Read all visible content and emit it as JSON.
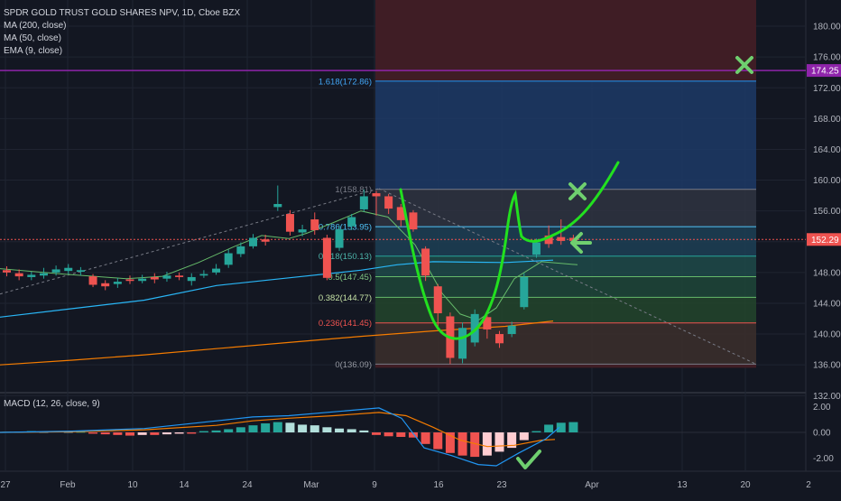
{
  "header": {
    "symbol_line": "SPDR GOLD TRUST GOLD SHARES NPV, 1D, Cboe BZX",
    "indicators": [
      "MA (200, close)",
      "MA (50, close)",
      "EMA (9, close)"
    ]
  },
  "macd": {
    "label": "MACD (12, 26, close, 9)",
    "axis_ticks": [
      "2.00",
      "0.00",
      "-2.00"
    ]
  },
  "colors": {
    "background": "#131722",
    "up": "#26a69a",
    "down": "#ef5350",
    "ma200": "#f57c00",
    "ma50": "#29b6f6",
    "ema9": "#66bb6a",
    "drawing": "#22e01f",
    "mark": "#6fcf6f",
    "price_line": "#8e24aa",
    "current": "#ef5350"
  },
  "chart_data": {
    "type": "candlestick",
    "title": "SPDR GOLD TRUST GOLD SHARES NPV, 1D, Cboe BZX",
    "ylim": [
      130,
      182
    ],
    "y_ticks": [
      "180.00",
      "176.00",
      "172.00",
      "168.00",
      "164.00",
      "160.00",
      "156.00",
      "152.00",
      "148.00",
      "144.00",
      "140.00",
      "136.00",
      "132.00"
    ],
    "x_ticks": [
      "27",
      "Feb",
      "10",
      "14",
      "24",
      "Mar",
      "9",
      "16",
      "23",
      "Apr",
      "13",
      "20",
      "2"
    ],
    "price_labels": {
      "top": "174.25",
      "current": "152.29"
    },
    "fib_levels": [
      {
        "label": "1.618(172.86)",
        "value": 172.86
      },
      {
        "label": "1(158.81)",
        "value": 158.81
      },
      {
        "label": "0.786(153.95)",
        "value": 153.95
      },
      {
        "label": "0.618(150.13)",
        "value": 150.13
      },
      {
        "label": "0.5(147.45)",
        "value": 147.45
      },
      {
        "label": "0.382(144.77)",
        "value": 144.77
      },
      {
        "label": "0.236(141.45)",
        "value": 141.45
      },
      {
        "label": "0(136.09)",
        "value": 136.09
      }
    ],
    "candles": [
      {
        "o": 148.3,
        "c": 148.0,
        "h": 148.8,
        "l": 147.5
      },
      {
        "o": 147.9,
        "c": 147.5,
        "h": 148.4,
        "l": 147.0
      },
      {
        "o": 147.4,
        "c": 147.7,
        "h": 148.1,
        "l": 147.0
      },
      {
        "o": 147.6,
        "c": 147.9,
        "h": 148.6,
        "l": 147.2
      },
      {
        "o": 148.0,
        "c": 148.4,
        "h": 148.9,
        "l": 147.6
      },
      {
        "o": 148.2,
        "c": 148.6,
        "h": 149.1,
        "l": 147.8
      },
      {
        "o": 148.1,
        "c": 148.3,
        "h": 148.7,
        "l": 147.6
      },
      {
        "o": 147.5,
        "c": 146.4,
        "h": 147.8,
        "l": 146.1
      },
      {
        "o": 146.6,
        "c": 146.2,
        "h": 147.0,
        "l": 145.7
      },
      {
        "o": 146.5,
        "c": 146.8,
        "h": 147.3,
        "l": 146.0
      },
      {
        "o": 147.1,
        "c": 146.9,
        "h": 147.6,
        "l": 146.5
      },
      {
        "o": 146.9,
        "c": 147.2,
        "h": 147.7,
        "l": 146.6
      },
      {
        "o": 147.4,
        "c": 147.1,
        "h": 147.9,
        "l": 146.6
      },
      {
        "o": 147.2,
        "c": 147.6,
        "h": 148.1,
        "l": 146.8
      },
      {
        "o": 147.6,
        "c": 147.4,
        "h": 148.0,
        "l": 147.0
      },
      {
        "o": 146.9,
        "c": 147.4,
        "h": 147.9,
        "l": 146.3
      },
      {
        "o": 147.6,
        "c": 147.8,
        "h": 148.3,
        "l": 147.3
      },
      {
        "o": 148.0,
        "c": 148.5,
        "h": 149.1,
        "l": 147.7
      },
      {
        "o": 149.0,
        "c": 150.5,
        "h": 151.0,
        "l": 148.6
      },
      {
        "o": 150.4,
        "c": 151.4,
        "h": 151.9,
        "l": 150.0
      },
      {
        "o": 151.4,
        "c": 152.5,
        "h": 153.0,
        "l": 151.1
      },
      {
        "o": 152.3,
        "c": 152.0,
        "h": 152.9,
        "l": 151.5
      },
      {
        "o": 156.5,
        "c": 156.9,
        "h": 159.3,
        "l": 156.0
      },
      {
        "o": 155.6,
        "c": 153.3,
        "h": 156.1,
        "l": 152.8
      },
      {
        "o": 153.2,
        "c": 153.6,
        "h": 154.2,
        "l": 152.7
      },
      {
        "o": 154.9,
        "c": 153.5,
        "h": 155.8,
        "l": 152.9
      },
      {
        "o": 152.5,
        "c": 147.3,
        "h": 152.9,
        "l": 147.0
      },
      {
        "o": 151.2,
        "c": 153.6,
        "h": 154.1,
        "l": 150.8
      },
      {
        "o": 154.0,
        "c": 155.2,
        "h": 155.6,
        "l": 153.5
      },
      {
        "o": 156.2,
        "c": 157.9,
        "h": 158.8,
        "l": 155.9
      },
      {
        "o": 158.3,
        "c": 157.9,
        "h": 158.6,
        "l": 155.4
      },
      {
        "o": 157.9,
        "c": 156.3,
        "h": 158.2,
        "l": 155.6
      },
      {
        "o": 156.5,
        "c": 154.8,
        "h": 156.9,
        "l": 154.0
      },
      {
        "o": 155.8,
        "c": 153.6,
        "h": 156.1,
        "l": 153.3
      },
      {
        "o": 151.1,
        "c": 147.6,
        "h": 151.4,
        "l": 146.9
      },
      {
        "o": 146.2,
        "c": 142.7,
        "h": 146.5,
        "l": 140.6
      },
      {
        "o": 142.3,
        "c": 136.9,
        "h": 142.8,
        "l": 136.1
      },
      {
        "o": 136.8,
        "c": 140.8,
        "h": 141.5,
        "l": 136.2
      },
      {
        "o": 138.9,
        "c": 142.6,
        "h": 143.2,
        "l": 138.4
      },
      {
        "o": 142.2,
        "c": 140.6,
        "h": 142.8,
        "l": 139.4
      },
      {
        "o": 140.0,
        "c": 138.8,
        "h": 140.4,
        "l": 138.2
      },
      {
        "o": 140.0,
        "c": 141.1,
        "h": 141.6,
        "l": 139.6
      },
      {
        "o": 143.5,
        "c": 147.4,
        "h": 147.9,
        "l": 143.2
      },
      {
        "o": 150.3,
        "c": 151.9,
        "h": 152.4,
        "l": 149.9
      },
      {
        "o": 152.8,
        "c": 151.7,
        "h": 154.1,
        "l": 151.2
      },
      {
        "o": 152.6,
        "c": 152.1,
        "h": 154.9,
        "l": 151.6
      },
      {
        "o": 152.5,
        "c": 152.1,
        "h": 152.9,
        "l": 151.6
      }
    ],
    "ma200": [
      [
        0,
        136.0
      ],
      [
        80,
        136.6
      ],
      [
        160,
        137.3
      ],
      [
        240,
        138.1
      ],
      [
        320,
        138.9
      ],
      [
        400,
        139.7
      ],
      [
        480,
        140.4
      ],
      [
        560,
        141.0
      ],
      [
        613,
        141.7
      ]
    ],
    "ma50": [
      [
        0,
        142.2
      ],
      [
        80,
        143.3
      ],
      [
        160,
        144.4
      ],
      [
        240,
        146.3
      ],
      [
        320,
        147.3
      ],
      [
        400,
        148.3
      ],
      [
        440,
        149.0
      ],
      [
        480,
        149.4
      ],
      [
        560,
        149.3
      ],
      [
        613,
        149.6
      ]
    ],
    "ema9": [
      [
        0,
        148.5
      ],
      [
        70,
        147.8
      ],
      [
        140,
        147.2
      ],
      [
        180,
        147.5
      ],
      [
        220,
        149.3
      ],
      [
        260,
        151.4
      ],
      [
        290,
        152.8
      ],
      [
        320,
        152.4
      ],
      [
        340,
        153.1
      ],
      [
        370,
        154.5
      ],
      [
        400,
        156.0
      ],
      [
        430,
        155.2
      ],
      [
        460,
        151.6
      ],
      [
        490,
        145.3
      ],
      [
        510,
        142.6
      ],
      [
        530,
        141.8
      ],
      [
        550,
        143.4
      ],
      [
        570,
        147.2
      ],
      [
        600,
        149.4
      ],
      [
        640,
        149.0
      ]
    ],
    "macd_line": [
      [
        0,
        0.0
      ],
      [
        80,
        0.1
      ],
      [
        160,
        0.3
      ],
      [
        240,
        0.9
      ],
      [
        280,
        1.2
      ],
      [
        320,
        1.3
      ],
      [
        370,
        1.6
      ],
      [
        420,
        1.9
      ],
      [
        445,
        1.1
      ],
      [
        470,
        -1.2
      ],
      [
        500,
        -1.8
      ],
      [
        530,
        -2.5
      ],
      [
        550,
        -2.6
      ],
      [
        575,
        -1.6
      ],
      [
        605,
        -0.5
      ],
      [
        620,
        0.4
      ]
    ],
    "signal_line": [
      [
        0,
        0.0
      ],
      [
        80,
        0.05
      ],
      [
        160,
        0.2
      ],
      [
        240,
        0.55
      ],
      [
        280,
        0.9
      ],
      [
        320,
        1.1
      ],
      [
        370,
        1.3
      ],
      [
        420,
        1.55
      ],
      [
        450,
        1.3
      ],
      [
        480,
        0.4
      ],
      [
        510,
        -0.6
      ],
      [
        540,
        -1.1
      ],
      [
        570,
        -1.0
      ],
      [
        600,
        -0.6
      ],
      [
        615,
        -0.55
      ]
    ],
    "macd_hist": [
      0.05,
      0.05,
      0.1,
      0.05,
      0.1,
      0.05,
      0.05,
      -0.1,
      -0.15,
      -0.2,
      -0.25,
      -0.2,
      -0.2,
      -0.15,
      -0.1,
      -0.1,
      0.1,
      0.15,
      0.25,
      0.4,
      0.55,
      0.7,
      0.8,
      0.75,
      0.6,
      0.55,
      0.4,
      0.3,
      0.25,
      0.15,
      -0.2,
      -0.3,
      -0.35,
      -0.4,
      -0.9,
      -1.3,
      -1.6,
      -1.8,
      -1.9,
      -1.8,
      -1.5,
      -1.2,
      -0.6,
      0.1,
      0.6,
      0.75,
      0.8
    ]
  }
}
